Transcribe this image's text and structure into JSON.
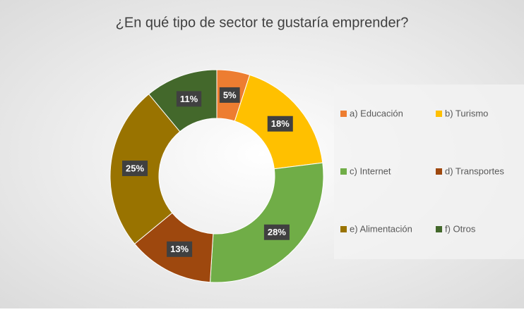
{
  "chart_data": {
    "type": "donut",
    "title": "¿En qué tipo de sector te gustaría emprender?",
    "categories": [
      "a) Educación",
      "b) Turismo",
      "c) Internet",
      "d) Transportes",
      "e) Alimentación",
      "f) Otros"
    ],
    "values": [
      5,
      18,
      28,
      13,
      25,
      11
    ],
    "value_labels": [
      "5%",
      "18%",
      "28%",
      "13%",
      "25%",
      "11%"
    ],
    "colors": [
      "#ed7d31",
      "#ffc000",
      "#70ad47",
      "#9e480e",
      "#997300",
      "#43682b"
    ],
    "legend": "right"
  }
}
